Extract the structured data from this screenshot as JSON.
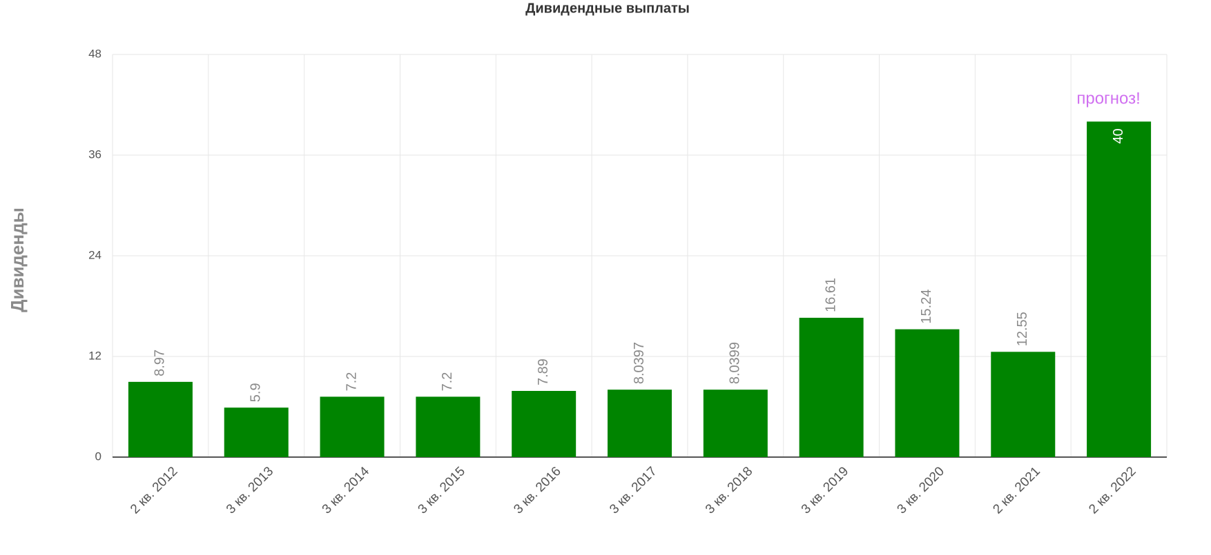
{
  "chart_data": {
    "type": "bar",
    "title": "Дивидендные выплаты",
    "y_label": "Дивиденды",
    "categories": [
      "2 кв. 2012",
      "3 кв. 2013",
      "3 кв. 2014",
      "3 кв. 2015",
      "3 кв. 2016",
      "3 кв. 2017",
      "3 кв. 2018",
      "3 кв. 2019",
      "3 кв. 2020",
      "2 кв. 2021",
      "2 кв. 2022"
    ],
    "values": [
      8.97,
      5.9,
      7.2,
      7.2,
      7.89,
      8.0397,
      8.0399,
      16.61,
      15.24,
      12.55,
      40
    ],
    "color": "#008400",
    "annotation": "прогноз!",
    "annotation_color": "#d070f0",
    "ylim": [
      0,
      48
    ],
    "yticks": [
      0,
      12,
      24,
      36,
      48
    ],
    "grid": true
  }
}
